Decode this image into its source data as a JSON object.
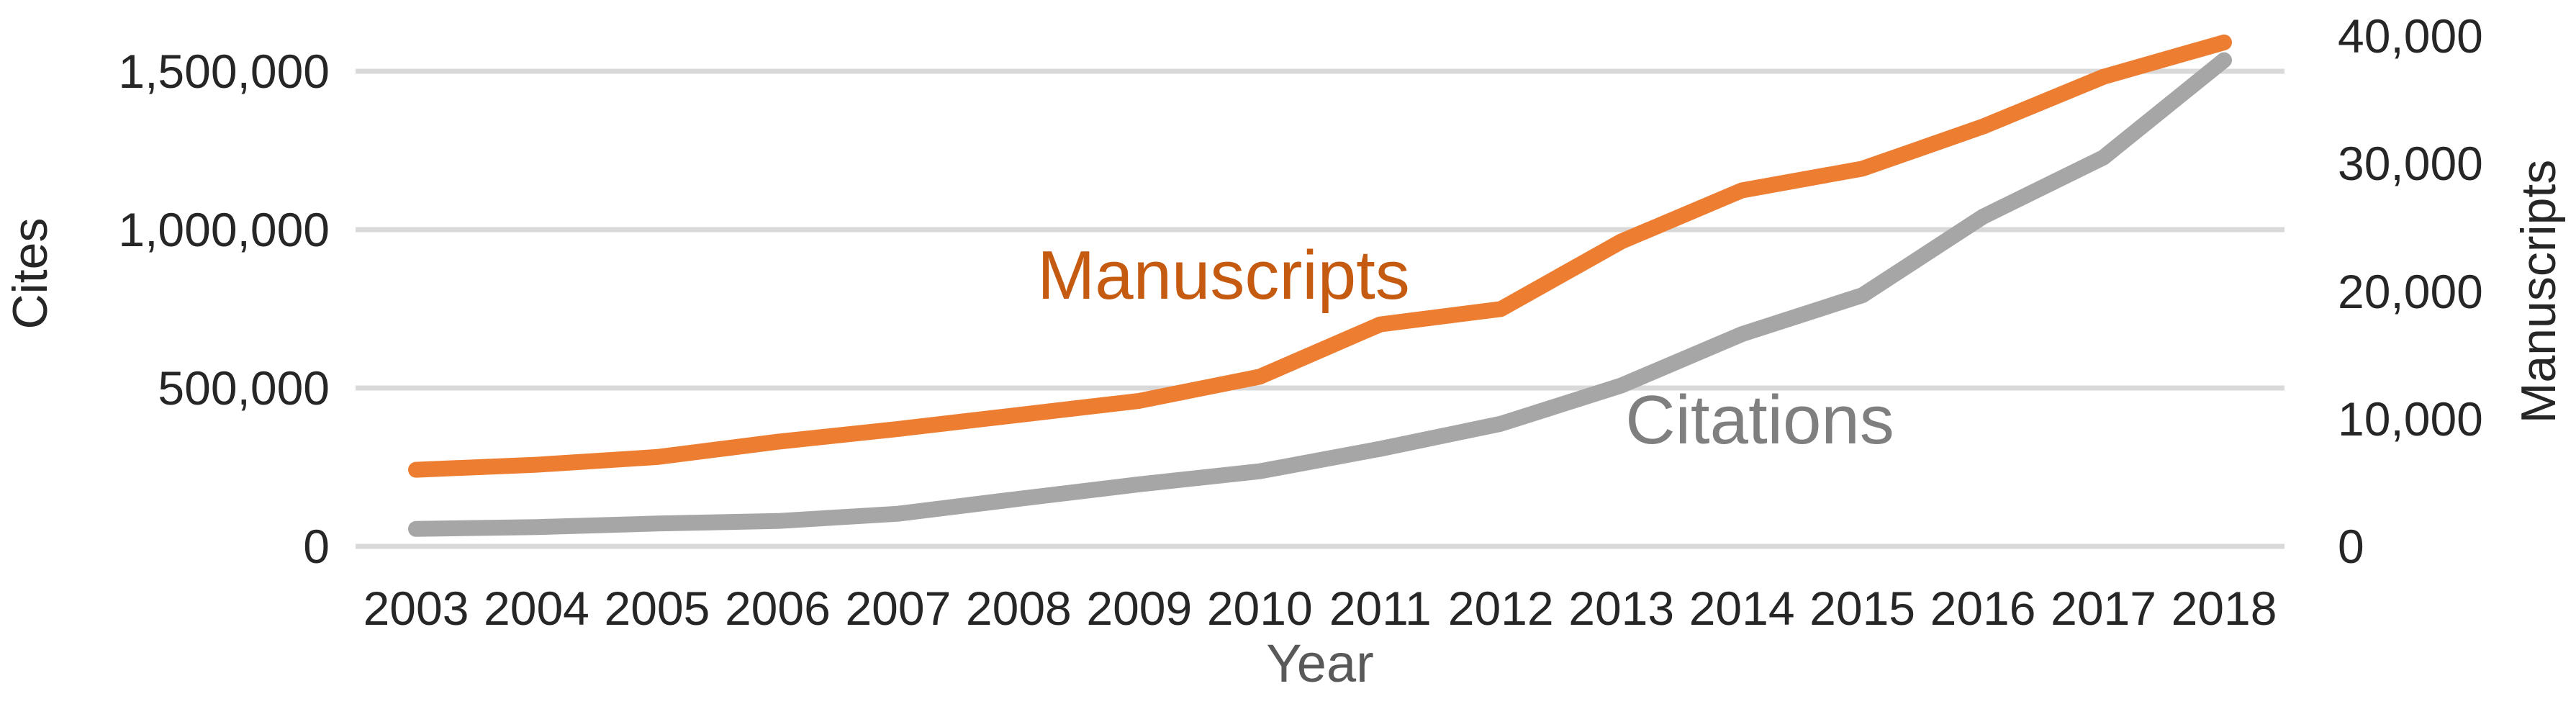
{
  "chart_data": {
    "type": "line",
    "title": "",
    "xlabel": "Year",
    "ylabel_left": "Cites",
    "ylabel_right": "Manuscripts",
    "grid": true,
    "legend": "inline-series-labels",
    "x": [
      2003,
      2004,
      2005,
      2006,
      2007,
      2008,
      2009,
      2010,
      2011,
      2012,
      2013,
      2014,
      2015,
      2016,
      2017,
      2018
    ],
    "series": [
      {
        "name": "Manuscripts",
        "axis": "right",
        "color": "#ED7D31",
        "label_color": "#C55A11",
        "values": [
          6000,
          6400,
          7000,
          8200,
          9200,
          10300,
          11400,
          13300,
          17400,
          18600,
          23900,
          27900,
          29600,
          32900,
          36800,
          39500
        ]
      },
      {
        "name": "Citations",
        "axis": "left",
        "color": "#A6A6A6",
        "label_color": "#7F7F7F",
        "values": [
          55000,
          61000,
          72000,
          80000,
          103000,
          150000,
          196000,
          237000,
          308000,
          387000,
          508000,
          670000,
          793000,
          1041000,
          1228000,
          1535000
        ]
      }
    ],
    "left_axis": {
      "min": 0,
      "max": 1600000,
      "tick_values": [
        0,
        500000,
        1000000,
        1500000
      ],
      "tick_labels": [
        "0",
        "500,000",
        "1,000,000",
        "1,500,000"
      ]
    },
    "right_axis": {
      "min": 0,
      "max": 40000,
      "tick_values": [
        0,
        10000,
        20000,
        30000,
        40000
      ],
      "tick_labels": [
        "0",
        "10,000",
        "20,000",
        "30,000",
        "40,000"
      ]
    },
    "x_tick_labels": [
      "2003",
      "2004",
      "2005",
      "2006",
      "2007",
      "2008",
      "2009",
      "2010",
      "2011",
      "2012",
      "2013",
      "2014",
      "2015",
      "2016",
      "2017",
      "2018"
    ],
    "colors": {
      "gridline": "#D9D9D9",
      "tick_text": "#262626",
      "x_axis_title_text": "#595959",
      "background": "#FFFFFF"
    }
  }
}
